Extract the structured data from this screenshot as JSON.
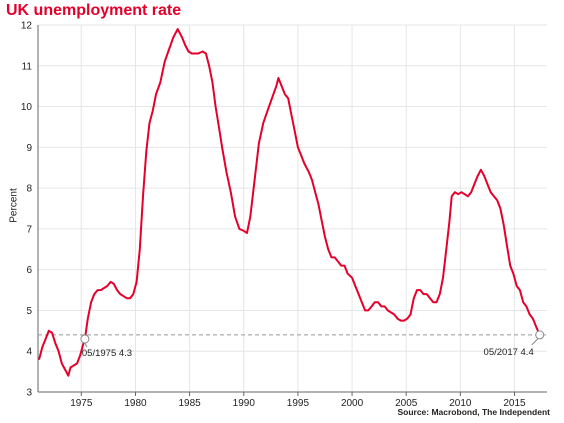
{
  "chart_data": {
    "type": "line",
    "title": "UK unemployment rate",
    "ylabel": "Percent",
    "xlabel": "",
    "source": "Source: Macrobond, The Independent",
    "xlim": [
      1971,
      2018
    ],
    "ylim": [
      3,
      12
    ],
    "x_ticks": [
      1975,
      1980,
      1985,
      1990,
      1995,
      2000,
      2005,
      2010,
      2015
    ],
    "y_ticks": [
      3,
      4,
      5,
      6,
      7,
      8,
      9,
      10,
      11,
      12
    ],
    "grid": true,
    "line_color": "#e4002b",
    "title_color": "#e4002b",
    "reference_line": {
      "y": 4.4,
      "style": "dashed",
      "color": "#999999"
    },
    "annotations": [
      {
        "label": "05/1975 4.3",
        "x": 1975.33,
        "y": 4.3
      },
      {
        "label": "05/2017 4.4",
        "x": 2017.33,
        "y": 4.4
      }
    ],
    "series": [
      {
        "x": [
          1971.1,
          1971.4,
          1971.7,
          1972.0,
          1972.3,
          1972.6,
          1972.9,
          1973.2,
          1973.5,
          1973.8,
          1974.0,
          1974.3,
          1974.6,
          1974.9,
          1975.2,
          1975.33,
          1975.6,
          1975.9,
          1976.2,
          1976.5,
          1976.8,
          1977.1,
          1977.4,
          1977.7,
          1978.0,
          1978.3,
          1978.6,
          1978.9,
          1979.2,
          1979.5,
          1979.8,
          1980.1,
          1980.4,
          1980.7,
          1981.0,
          1981.3,
          1981.6,
          1981.9,
          1982.3,
          1982.7,
          1983.1,
          1983.5,
          1983.9,
          1984.3,
          1984.6,
          1984.9,
          1985.2,
          1985.5,
          1985.8,
          1986.2,
          1986.5,
          1986.8,
          1987.1,
          1987.4,
          1987.7,
          1988.0,
          1988.4,
          1988.8,
          1989.2,
          1989.6,
          1990.0,
          1990.3,
          1990.6,
          1991.0,
          1991.4,
          1991.8,
          1992.2,
          1992.6,
          1993.0,
          1993.2,
          1993.5,
          1993.8,
          1994.1,
          1994.4,
          1994.7,
          1995.0,
          1995.3,
          1995.6,
          1996.0,
          1996.3,
          1996.6,
          1996.9,
          1997.2,
          1997.5,
          1997.8,
          1998.1,
          1998.4,
          1998.7,
          1999.0,
          1999.3,
          1999.6,
          2000.0,
          2000.3,
          2000.6,
          2000.9,
          2001.2,
          2001.5,
          2001.8,
          2002.1,
          2002.4,
          2002.7,
          2003.0,
          2003.3,
          2003.6,
          2003.9,
          2004.2,
          2004.5,
          2004.8,
          2005.1,
          2005.4,
          2005.7,
          2006.0,
          2006.3,
          2006.6,
          2006.9,
          2007.2,
          2007.5,
          2007.8,
          2008.1,
          2008.4,
          2008.7,
          2009.0,
          2009.2,
          2009.5,
          2009.8,
          2010.1,
          2010.4,
          2010.7,
          2011.0,
          2011.3,
          2011.6,
          2011.9,
          2012.2,
          2012.5,
          2012.8,
          2013.1,
          2013.4,
          2013.7,
          2014.0,
          2014.3,
          2014.6,
          2014.9,
          2015.2,
          2015.5,
          2015.8,
          2016.1,
          2016.4,
          2016.7,
          2017.0,
          2017.33
        ],
        "y": [
          3.8,
          4.1,
          4.3,
          4.5,
          4.45,
          4.2,
          4.0,
          3.7,
          3.55,
          3.4,
          3.6,
          3.65,
          3.7,
          3.9,
          4.2,
          4.3,
          4.8,
          5.2,
          5.4,
          5.5,
          5.5,
          5.55,
          5.6,
          5.7,
          5.65,
          5.5,
          5.4,
          5.35,
          5.3,
          5.3,
          5.4,
          5.7,
          6.5,
          7.8,
          8.9,
          9.6,
          9.9,
          10.3,
          10.6,
          11.1,
          11.4,
          11.7,
          11.9,
          11.7,
          11.5,
          11.35,
          11.3,
          11.3,
          11.3,
          11.35,
          11.3,
          11.0,
          10.6,
          10.0,
          9.5,
          9.0,
          8.4,
          7.9,
          7.3,
          7.0,
          6.95,
          6.9,
          7.3,
          8.2,
          9.1,
          9.6,
          9.9,
          10.2,
          10.5,
          10.7,
          10.5,
          10.3,
          10.2,
          9.8,
          9.4,
          9.0,
          8.8,
          8.6,
          8.4,
          8.2,
          7.9,
          7.6,
          7.2,
          6.8,
          6.5,
          6.3,
          6.3,
          6.2,
          6.1,
          6.1,
          5.9,
          5.8,
          5.6,
          5.4,
          5.2,
          5.0,
          5.0,
          5.1,
          5.2,
          5.2,
          5.1,
          5.1,
          5.0,
          4.95,
          4.9,
          4.8,
          4.75,
          4.75,
          4.8,
          4.9,
          5.3,
          5.5,
          5.5,
          5.4,
          5.4,
          5.3,
          5.2,
          5.2,
          5.4,
          5.8,
          6.5,
          7.2,
          7.8,
          7.9,
          7.85,
          7.9,
          7.85,
          7.8,
          7.9,
          8.1,
          8.3,
          8.45,
          8.3,
          8.1,
          7.9,
          7.8,
          7.7,
          7.5,
          7.1,
          6.6,
          6.1,
          5.9,
          5.6,
          5.5,
          5.2,
          5.1,
          4.9,
          4.8,
          4.6,
          4.4
        ]
      }
    ]
  }
}
